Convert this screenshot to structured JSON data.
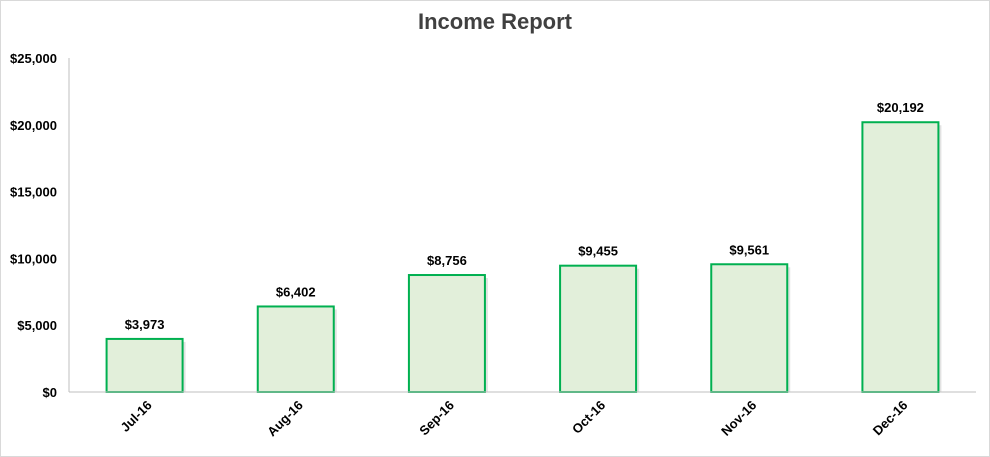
{
  "chart_data": {
    "type": "bar",
    "title": "Income Report",
    "categories": [
      "Jul-16",
      "Aug-16",
      "Sep-16",
      "Oct-16",
      "Nov-16",
      "Dec-16"
    ],
    "values": [
      3973,
      6402,
      8756,
      9455,
      9561,
      20192
    ],
    "data_labels": [
      "$3,973",
      "$6,402",
      "$8,756",
      "$9,455",
      "$9,561",
      "$20,192"
    ],
    "y_ticks": [
      0,
      5000,
      10000,
      15000,
      20000,
      25000
    ],
    "y_tick_labels": [
      "$0",
      "$5,000",
      "$10,000",
      "$15,000",
      "$20,000",
      "$25,000"
    ],
    "ylim": [
      0,
      25000
    ],
    "xlabel": "",
    "ylabel": "",
    "grid": false,
    "legend": "none",
    "colors": {
      "bar_fill": "#e2efda",
      "bar_stroke": "#00b050",
      "axis": "#bfbfbf"
    }
  }
}
